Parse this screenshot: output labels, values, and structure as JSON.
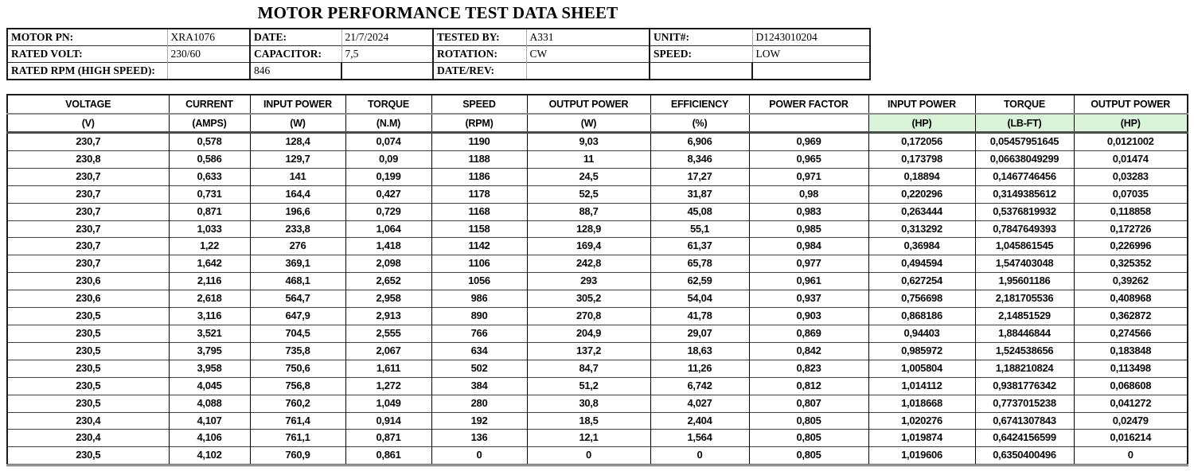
{
  "title": "MOTOR PERFORMANCE TEST DATA SHEET",
  "colors": {
    "unit_highlight": "#d8f3d8"
  },
  "info": {
    "rows": [
      [
        "MOTOR PN:",
        "XRA1076",
        "DATE:",
        "21/7/2024",
        "TESTED BY:",
        "A331",
        "UNIT#:",
        "D1243010204"
      ],
      [
        "RATED VOLT:",
        "230/60",
        "CAPACITOR:",
        "7,5",
        "ROTATION:",
        "CW",
        "SPEED:",
        "LOW"
      ],
      [
        "RATED RPM (HIGH SPEED):",
        "",
        "846",
        "",
        "DATE/REV:",
        "",
        "",
        ""
      ]
    ]
  },
  "table": {
    "columns": [
      {
        "name": "VOLTAGE",
        "unit": "(V)",
        "highlight": false
      },
      {
        "name": "CURRENT",
        "unit": "(AMPS)",
        "highlight": false
      },
      {
        "name": "INPUT POWER",
        "unit": "(W)",
        "highlight": false
      },
      {
        "name": "TORQUE",
        "unit": "(N.M)",
        "highlight": false
      },
      {
        "name": "SPEED",
        "unit": "(RPM)",
        "highlight": false
      },
      {
        "name": "OUTPUT POWER",
        "unit": "(W)",
        "highlight": false
      },
      {
        "name": "EFFICIENCY",
        "unit": "(%)",
        "highlight": false
      },
      {
        "name": "POWER FACTOR",
        "unit": "",
        "highlight": false
      },
      {
        "name": "INPUT POWER",
        "unit": "(HP)",
        "highlight": true
      },
      {
        "name": "TORQUE",
        "unit": "(LB-FT)",
        "highlight": true
      },
      {
        "name": "OUTPUT POWER",
        "unit": "(HP)",
        "highlight": true
      }
    ],
    "rows": [
      [
        "230,7",
        "0,578",
        "128,4",
        "0,074",
        "1190",
        "9,03",
        "6,906",
        "0,969",
        "0,172056",
        "0,05457951645",
        "0,0121002"
      ],
      [
        "230,8",
        "0,586",
        "129,7",
        "0,09",
        "1188",
        "11",
        "8,346",
        "0,965",
        "0,173798",
        "0,06638049299",
        "0,01474"
      ],
      [
        "230,7",
        "0,633",
        "141",
        "0,199",
        "1186",
        "24,5",
        "17,27",
        "0,971",
        "0,18894",
        "0,1467746456",
        "0,03283"
      ],
      [
        "230,7",
        "0,731",
        "164,4",
        "0,427",
        "1178",
        "52,5",
        "31,87",
        "0,98",
        "0,220296",
        "0,3149385612",
        "0,07035"
      ],
      [
        "230,7",
        "0,871",
        "196,6",
        "0,729",
        "1168",
        "88,7",
        "45,08",
        "0,983",
        "0,263444",
        "0,5376819932",
        "0,118858"
      ],
      [
        "230,7",
        "1,033",
        "233,8",
        "1,064",
        "1158",
        "128,9",
        "55,1",
        "0,985",
        "0,313292",
        "0,7847649393",
        "0,172726"
      ],
      [
        "230,7",
        "1,22",
        "276",
        "1,418",
        "1142",
        "169,4",
        "61,37",
        "0,984",
        "0,36984",
        "1,045861545",
        "0,226996"
      ],
      [
        "230,7",
        "1,642",
        "369,1",
        "2,098",
        "1106",
        "242,8",
        "65,78",
        "0,977",
        "0,494594",
        "1,547403048",
        "0,325352"
      ],
      [
        "230,6",
        "2,116",
        "468,1",
        "2,652",
        "1056",
        "293",
        "62,59",
        "0,961",
        "0,627254",
        "1,95601186",
        "0,39262"
      ],
      [
        "230,6",
        "2,618",
        "564,7",
        "2,958",
        "986",
        "305,2",
        "54,04",
        "0,937",
        "0,756698",
        "2,181705536",
        "0,408968"
      ],
      [
        "230,5",
        "3,116",
        "647,9",
        "2,913",
        "890",
        "270,8",
        "41,78",
        "0,903",
        "0,868186",
        "2,14851529",
        "0,362872"
      ],
      [
        "230,5",
        "3,521",
        "704,5",
        "2,555",
        "766",
        "204,9",
        "29,07",
        "0,869",
        "0,94403",
        "1,88446844",
        "0,274566"
      ],
      [
        "230,5",
        "3,795",
        "735,8",
        "2,067",
        "634",
        "137,2",
        "18,63",
        "0,842",
        "0,985972",
        "1,524538656",
        "0,183848"
      ],
      [
        "230,5",
        "3,958",
        "750,6",
        "1,611",
        "502",
        "84,7",
        "11,26",
        "0,823",
        "1,005804",
        "1,188210824",
        "0,113498"
      ],
      [
        "230,5",
        "4,045",
        "756,8",
        "1,272",
        "384",
        "51,2",
        "6,742",
        "0,812",
        "1,014112",
        "0,9381776342",
        "0,068608"
      ],
      [
        "230,5",
        "4,088",
        "760,2",
        "1,049",
        "280",
        "30,8",
        "4,027",
        "0,807",
        "1,018668",
        "0,7737015238",
        "0,041272"
      ],
      [
        "230,4",
        "4,107",
        "761,4",
        "0,914",
        "192",
        "18,5",
        "2,404",
        "0,805",
        "1,020276",
        "0,6741307843",
        "0,02479"
      ],
      [
        "230,4",
        "4,106",
        "761,1",
        "0,871",
        "136",
        "12,1",
        "1,564",
        "0,805",
        "1,019874",
        "0,6424156599",
        "0,016214"
      ],
      [
        "230,5",
        "4,102",
        "760,9",
        "0,861",
        "0",
        "0",
        "0",
        "0,805",
        "1,019606",
        "0,6350400496",
        "0"
      ]
    ]
  }
}
